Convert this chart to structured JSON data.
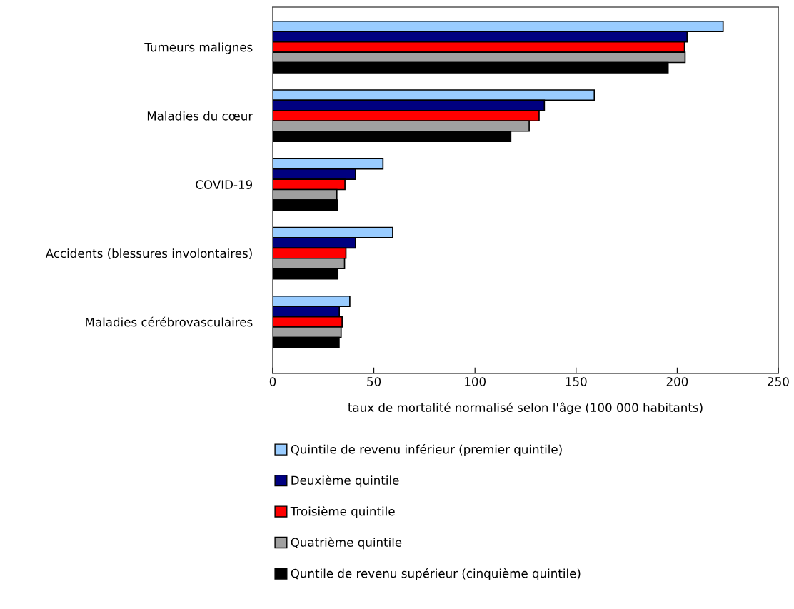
{
  "chart_data": {
    "type": "bar",
    "orientation": "horizontal",
    "categories": [
      "Tumeurs malignes",
      "Maladies du cœur",
      "COVID-19",
      "Accidents (blessures involontaires)",
      "Maladies cérébrovasculaires"
    ],
    "series": [
      {
        "name": "Quintile de revenu inférieur (premier quintile)",
        "color": "#99ccff",
        "values": [
          222.7,
          159,
          54.5,
          59.3,
          38.1
        ]
      },
      {
        "name": "Deuxième quintile",
        "color": "#000080",
        "values": [
          204.9,
          134.3,
          40.9,
          40.9,
          32.9
        ]
      },
      {
        "name": "Troisième quintile",
        "color": "#ff0000",
        "values": [
          203.6,
          131.7,
          35.7,
          36.2,
          34.3
        ]
      },
      {
        "name": "Quatrième quintile",
        "color": "#a0a0a0",
        "values": [
          203.9,
          126.8,
          31.7,
          35.5,
          33.8
        ]
      },
      {
        "name": "Quntile de revenu supérieur (cinquième quintile)",
        "color": "#000000",
        "values": [
          195.5,
          117.7,
          32.0,
          32.2,
          32.8
        ]
      }
    ],
    "xlabel": "taux de mortalité normalisé selon l'âge (100 000 habitants)",
    "xlim": [
      0,
      250
    ],
    "xticks": [
      0,
      50,
      100,
      150,
      200,
      250
    ],
    "grid": false,
    "legend": "bottom"
  }
}
